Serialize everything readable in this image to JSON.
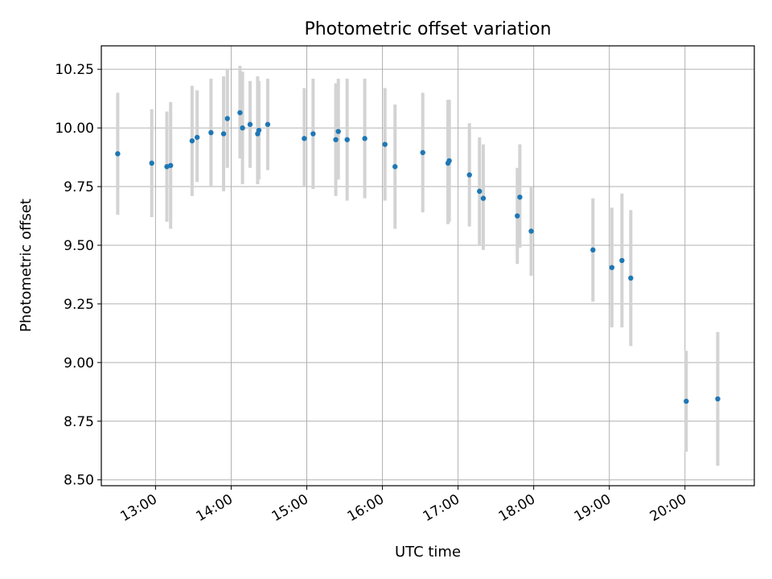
{
  "chart_data": {
    "type": "scatter",
    "title": "Photometric offset variation",
    "xlabel": "UTC time",
    "ylabel": "Photometric offset",
    "x_unit": "hours UTC",
    "xlim": [
      "12:17",
      "20:55"
    ],
    "ylim": [
      8.475,
      10.35
    ],
    "x_ticks": [
      "13:00",
      "14:00",
      "15:00",
      "16:00",
      "17:00",
      "18:00",
      "19:00",
      "20:00"
    ],
    "y_ticks": [
      "8.50",
      "8.75",
      "9.00",
      "9.25",
      "9.50",
      "9.75",
      "10.00",
      "10.25"
    ],
    "grid": true,
    "legend": "none",
    "colors": {
      "point": "#1f77b4",
      "errorbar": "#d3d3d3",
      "grid": "#b0b0b0"
    },
    "series": [
      {
        "points": [
          {
            "x": "12:30",
            "y": 9.89,
            "low": 9.63,
            "high": 10.15
          },
          {
            "x": "12:57",
            "y": 9.85,
            "low": 9.62,
            "high": 10.08
          },
          {
            "x": "13:09",
            "y": 9.835,
            "low": 9.6,
            "high": 10.07
          },
          {
            "x": "13:12",
            "y": 9.84,
            "low": 9.57,
            "high": 10.11
          },
          {
            "x": "13:29",
            "y": 9.945,
            "low": 9.71,
            "high": 10.18
          },
          {
            "x": "13:33",
            "y": 9.96,
            "low": 9.77,
            "high": 10.16
          },
          {
            "x": "13:44",
            "y": 9.98,
            "low": 9.75,
            "high": 10.21
          },
          {
            "x": "13:54",
            "y": 9.975,
            "low": 9.73,
            "high": 10.22
          },
          {
            "x": "13:57",
            "y": 10.04,
            "low": 9.83,
            "high": 10.25
          },
          {
            "x": "14:07",
            "y": 10.065,
            "low": 9.87,
            "high": 10.265
          },
          {
            "x": "14:09",
            "y": 10.0,
            "low": 9.76,
            "high": 10.24
          },
          {
            "x": "14:15",
            "y": 10.015,
            "low": 9.83,
            "high": 10.2
          },
          {
            "x": "14:21",
            "y": 9.975,
            "low": 9.76,
            "high": 10.22
          },
          {
            "x": "14:22",
            "y": 9.99,
            "low": 9.78,
            "high": 10.2
          },
          {
            "x": "14:29",
            "y": 10.015,
            "low": 9.82,
            "high": 10.21
          },
          {
            "x": "14:58",
            "y": 9.955,
            "low": 9.75,
            "high": 10.17
          },
          {
            "x": "15:05",
            "y": 9.975,
            "low": 9.74,
            "high": 10.21
          },
          {
            "x": "15:23",
            "y": 9.95,
            "low": 9.71,
            "high": 10.19
          },
          {
            "x": "15:25",
            "y": 9.985,
            "low": 9.78,
            "high": 10.21
          },
          {
            "x": "15:32",
            "y": 9.95,
            "low": 9.69,
            "high": 10.21
          },
          {
            "x": "15:46",
            "y": 9.955,
            "low": 9.7,
            "high": 10.21
          },
          {
            "x": "16:02",
            "y": 9.93,
            "low": 9.69,
            "high": 10.17
          },
          {
            "x": "16:10",
            "y": 9.835,
            "low": 9.57,
            "high": 10.1
          },
          {
            "x": "16:32",
            "y": 9.895,
            "low": 9.64,
            "high": 10.15
          },
          {
            "x": "16:52",
            "y": 9.85,
            "low": 9.59,
            "high": 10.12
          },
          {
            "x": "16:53",
            "y": 9.86,
            "low": 9.6,
            "high": 10.12
          },
          {
            "x": "17:09",
            "y": 9.8,
            "low": 9.58,
            "high": 10.02
          },
          {
            "x": "17:17",
            "y": 9.73,
            "low": 9.5,
            "high": 9.96
          },
          {
            "x": "17:20",
            "y": 9.7,
            "low": 9.48,
            "high": 9.93
          },
          {
            "x": "17:47",
            "y": 9.625,
            "low": 9.42,
            "high": 9.83
          },
          {
            "x": "17:49",
            "y": 9.705,
            "low": 9.49,
            "high": 9.93
          },
          {
            "x": "17:58",
            "y": 9.56,
            "low": 9.37,
            "high": 9.75
          },
          {
            "x": "18:47",
            "y": 9.48,
            "low": 9.26,
            "high": 9.7
          },
          {
            "x": "19:02",
            "y": 9.405,
            "low": 9.15,
            "high": 9.66
          },
          {
            "x": "19:10",
            "y": 9.435,
            "low": 9.15,
            "high": 9.72
          },
          {
            "x": "19:17",
            "y": 9.36,
            "low": 9.07,
            "high": 9.65
          },
          {
            "x": "20:01",
            "y": 8.835,
            "low": 8.62,
            "high": 9.05
          },
          {
            "x": "20:26",
            "y": 8.845,
            "low": 8.56,
            "high": 9.13
          }
        ]
      }
    ]
  }
}
